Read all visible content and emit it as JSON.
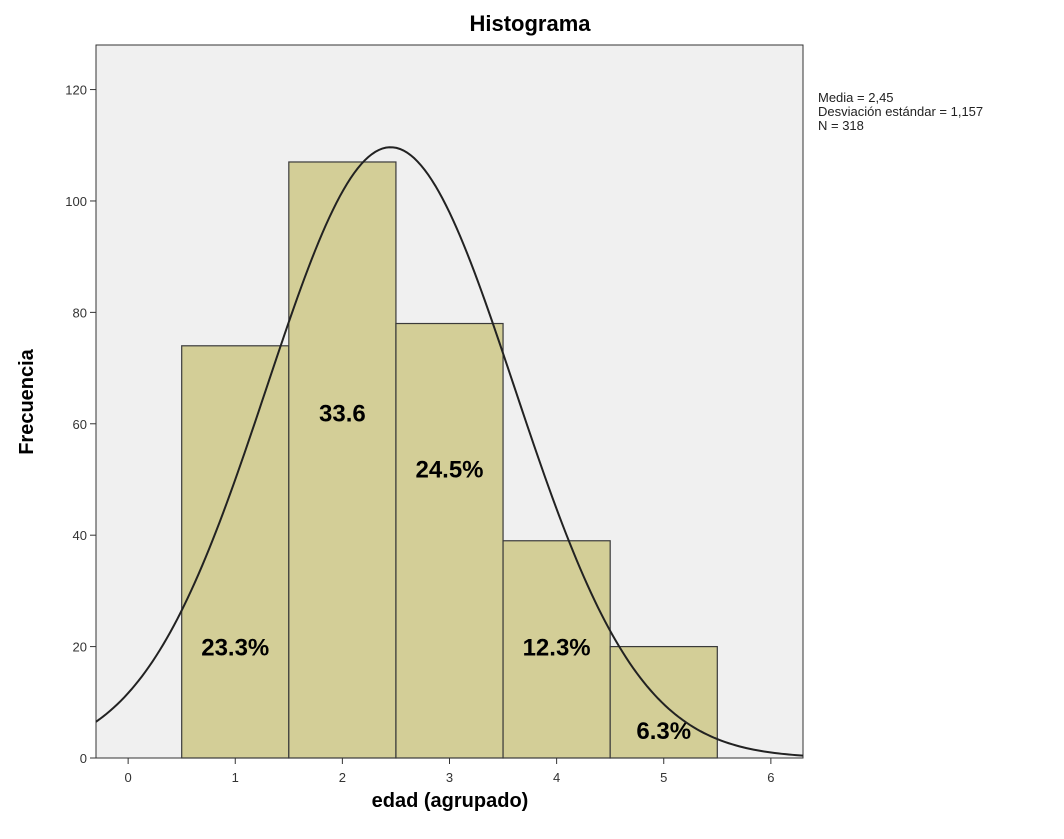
{
  "chart_data": {
    "type": "bar",
    "title": "Histograma",
    "xlabel": "edad (agrupado)",
    "ylabel": "Frecuencia",
    "xlim": [
      -0.3,
      6.3
    ],
    "ylim": [
      0,
      128
    ],
    "x_ticks": [
      "0",
      "1",
      "2",
      "3",
      "4",
      "5",
      "6"
    ],
    "y_ticks": [
      "0",
      "20",
      "40",
      "60",
      "80",
      "100",
      "120"
    ],
    "bins": [
      {
        "x": 1,
        "value": 74,
        "label": "23.3%"
      },
      {
        "x": 2,
        "value": 107,
        "label": "33.6"
      },
      {
        "x": 3,
        "value": 78,
        "label": "24.5%"
      },
      {
        "x": 4,
        "value": 39,
        "label": "12.3%"
      },
      {
        "x": 5,
        "value": 20,
        "label": "6.3%"
      }
    ],
    "normal_curve": {
      "mean": 2.45,
      "sd": 1.157,
      "n": 318
    },
    "stats_lines": [
      "Media = 2,45",
      "Desviación estándar = 1,157",
      "N = 318"
    ],
    "grid": false,
    "colors": {
      "plot_background": "#f0f0f0",
      "bar_fill": "#d3ce97",
      "bar_stroke": "#3a3a3a",
      "curve": "#222222"
    }
  }
}
